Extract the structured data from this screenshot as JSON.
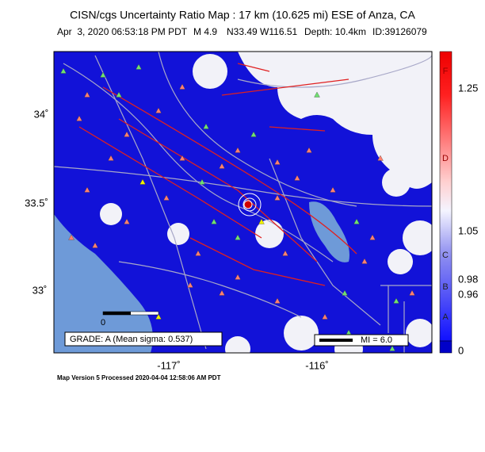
{
  "header": {
    "title": "CISN/cgs Uncertainty Ratio Map : 17 km (10.625 mi) ESE of Anza, CA",
    "subtitle": [
      "Apr  3, 2020 06:53:18 PM PDT",
      "M 4.9",
      "N33.49 W116.51",
      "Depth: 10.4km",
      "ID:39126079"
    ]
  },
  "map": {
    "lat_labels": [
      "34˚",
      "33.5˚",
      "33˚"
    ],
    "lon_labels": [
      "-117˚",
      "-116˚"
    ],
    "grade": "GRADE: A (Mean sigma: 0.537)",
    "mi_legend": "MI = 6.0",
    "scale_zero": "0"
  },
  "colorbar": {
    "letters": [
      "F",
      "D",
      "C",
      "B",
      "A"
    ],
    "labels": [
      "1.25",
      "1.05",
      "0.98",
      "0.96",
      "0"
    ]
  },
  "footer": "Map Version 5 Processed 2020-04-04 12:58:06 AM PDT"
}
